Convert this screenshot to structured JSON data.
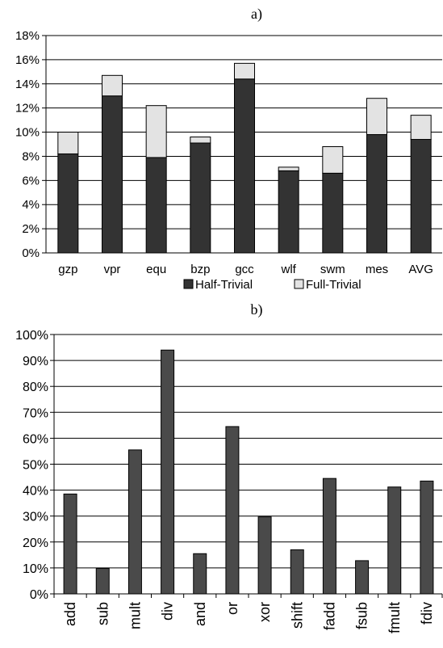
{
  "colors": {
    "half_trivial": "#333333",
    "full_trivial": "#e3e3e3",
    "op_bar": "#4a4a4a",
    "axis": "#000000",
    "grid": "#000000"
  },
  "chart_data": [
    {
      "type": "bar",
      "stacked": true,
      "title": "a)",
      "categories": [
        "gzp",
        "vpr",
        "equ",
        "bzp",
        "gcc",
        "wlf",
        "swm",
        "mes",
        "AVG"
      ],
      "series": [
        {
          "name": "Half-Trivial",
          "values": [
            8.2,
            13.0,
            7.9,
            9.1,
            14.4,
            6.8,
            6.6,
            9.8,
            9.4
          ]
        },
        {
          "name": "Full-Trivial",
          "values": [
            1.8,
            1.7,
            4.3,
            0.5,
            1.3,
            0.3,
            2.2,
            3.0,
            2.0
          ]
        }
      ],
      "ylim": [
        0,
        18
      ],
      "yticks": [
        "0%",
        "2%",
        "4%",
        "6%",
        "8%",
        "10%",
        "12%",
        "14%",
        "16%",
        "18%"
      ],
      "grid": true,
      "legend_position": "bottom"
    },
    {
      "type": "bar",
      "title": "b)",
      "categories": [
        "add",
        "sub",
        "mult",
        "div",
        "and",
        "or",
        "xor",
        "shift",
        "fadd",
        "fsub",
        "fmult",
        "fdiv"
      ],
      "values": [
        38.5,
        9.8,
        55.5,
        94.0,
        15.5,
        64.5,
        29.7,
        17.0,
        44.5,
        12.8,
        41.2,
        43.5
      ],
      "ylim": [
        0,
        100
      ],
      "yticks": [
        "0%",
        "10%",
        "20%",
        "30%",
        "40%",
        "50%",
        "60%",
        "70%",
        "80%",
        "90%",
        "100%"
      ],
      "grid": true,
      "xtick_rotation": "vertical"
    }
  ]
}
